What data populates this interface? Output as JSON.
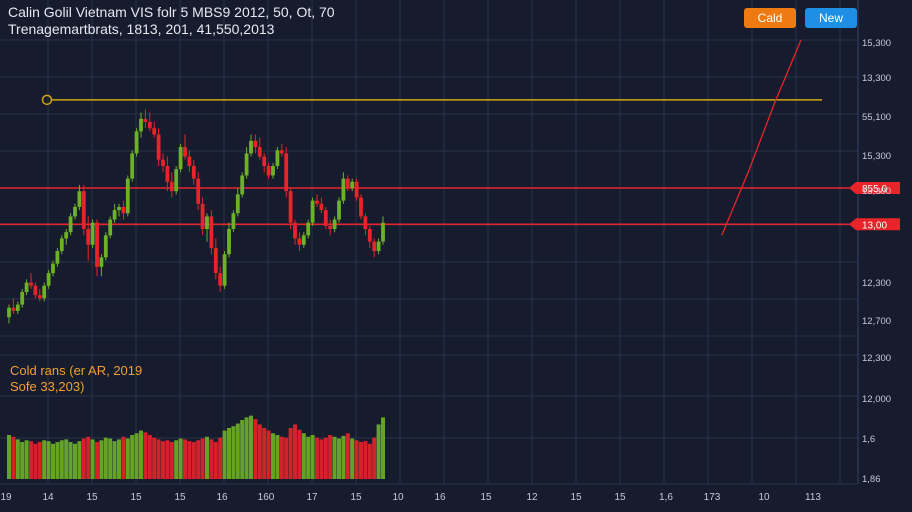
{
  "header": {
    "title": "Calin Golil Vietnam VIS folr 5 MBS9 2012, 50, Ot, 70",
    "subtitle": "Trenagemartbrats, 1813, 201, 41,550,2013"
  },
  "buttons": {
    "primary_label": "Cald",
    "secondary_label": "New"
  },
  "volume_panel": {
    "line1": "Cold rans (er AR, 2019",
    "line2": "Sofe 33,203)"
  },
  "colors": {
    "up": "#6db226",
    "down": "#e8242a",
    "level_line": "#d4a414",
    "sr_line": "#e8242a",
    "background": "#161b2e",
    "grid": "#2a3148"
  },
  "chart_data": {
    "type": "candlestick",
    "price_axis_labels": [
      "15,300",
      "13,300",
      "55,100",
      "15,300",
      "13,300",
      "855,0",
      "13,00",
      "12,300",
      "12,700",
      "12,300"
    ],
    "volume_axis_labels": [
      "12,000",
      "1,6",
      "1,86"
    ],
    "x_tick_labels": [
      "19",
      "14",
      "15",
      "15",
      "15",
      "16",
      "160",
      "17",
      "15",
      "10",
      "16",
      "15",
      "12",
      "15",
      "15",
      "1,6",
      "173",
      "10",
      "113"
    ],
    "yrange": [
      0,
      100
    ],
    "grid": true,
    "level_marker": {
      "value": 81,
      "label": "55,100"
    },
    "sr_lines": [
      {
        "value": 53,
        "label": "855,0"
      },
      {
        "value": 41.5,
        "label": "13,00"
      }
    ],
    "projection": [
      [
        162,
        38
      ],
      [
        168,
        58
      ],
      [
        174,
        80
      ],
      [
        180,
        100
      ]
    ],
    "candles": [
      {
        "o": 12,
        "h": 16,
        "l": 10,
        "c": 15
      },
      {
        "o": 15,
        "h": 18,
        "l": 13,
        "c": 14
      },
      {
        "o": 14,
        "h": 17,
        "l": 13,
        "c": 16
      },
      {
        "o": 16,
        "h": 21,
        "l": 15,
        "c": 20
      },
      {
        "o": 20,
        "h": 24,
        "l": 19,
        "c": 23
      },
      {
        "o": 23,
        "h": 26,
        "l": 21,
        "c": 22
      },
      {
        "o": 22,
        "h": 23,
        "l": 18,
        "c": 19
      },
      {
        "o": 19,
        "h": 21,
        "l": 17,
        "c": 18
      },
      {
        "o": 18,
        "h": 23,
        "l": 17,
        "c": 22
      },
      {
        "o": 22,
        "h": 27,
        "l": 21,
        "c": 26
      },
      {
        "o": 26,
        "h": 30,
        "l": 25,
        "c": 29
      },
      {
        "o": 29,
        "h": 34,
        "l": 28,
        "c": 33
      },
      {
        "o": 33,
        "h": 38,
        "l": 32,
        "c": 37
      },
      {
        "o": 37,
        "h": 40,
        "l": 35,
        "c": 39
      },
      {
        "o": 39,
        "h": 45,
        "l": 38,
        "c": 44
      },
      {
        "o": 44,
        "h": 48,
        "l": 43,
        "c": 47
      },
      {
        "o": 47,
        "h": 54,
        "l": 46,
        "c": 52
      },
      {
        "o": 52,
        "h": 54,
        "l": 38,
        "c": 40
      },
      {
        "o": 40,
        "h": 44,
        "l": 30,
        "c": 35
      },
      {
        "o": 35,
        "h": 43,
        "l": 34,
        "c": 42
      },
      {
        "o": 42,
        "h": 43,
        "l": 25,
        "c": 28
      },
      {
        "o": 28,
        "h": 32,
        "l": 25,
        "c": 31
      },
      {
        "o": 31,
        "h": 39,
        "l": 30,
        "c": 38
      },
      {
        "o": 38,
        "h": 44,
        "l": 37,
        "c": 43
      },
      {
        "o": 43,
        "h": 48,
        "l": 42,
        "c": 46
      },
      {
        "o": 46,
        "h": 48,
        "l": 44,
        "c": 47
      },
      {
        "o": 47,
        "h": 49,
        "l": 43,
        "c": 45
      },
      {
        "o": 45,
        "h": 57,
        "l": 44,
        "c": 56
      },
      {
        "o": 56,
        "h": 65,
        "l": 55,
        "c": 64
      },
      {
        "o": 64,
        "h": 72,
        "l": 63,
        "c": 71
      },
      {
        "o": 71,
        "h": 77,
        "l": 69,
        "c": 75
      },
      {
        "o": 75,
        "h": 78,
        "l": 72,
        "c": 74
      },
      {
        "o": 74,
        "h": 77,
        "l": 71,
        "c": 72
      },
      {
        "o": 72,
        "h": 74,
        "l": 69,
        "c": 70
      },
      {
        "o": 70,
        "h": 72,
        "l": 60,
        "c": 62
      },
      {
        "o": 62,
        "h": 64,
        "l": 58,
        "c": 60
      },
      {
        "o": 60,
        "h": 63,
        "l": 52,
        "c": 55
      },
      {
        "o": 55,
        "h": 58,
        "l": 50,
        "c": 52
      },
      {
        "o": 52,
        "h": 60,
        "l": 51,
        "c": 59
      },
      {
        "o": 59,
        "h": 67,
        "l": 58,
        "c": 66
      },
      {
        "o": 66,
        "h": 70,
        "l": 62,
        "c": 63
      },
      {
        "o": 63,
        "h": 65,
        "l": 58,
        "c": 60
      },
      {
        "o": 60,
        "h": 62,
        "l": 54,
        "c": 56
      },
      {
        "o": 56,
        "h": 58,
        "l": 46,
        "c": 48
      },
      {
        "o": 48,
        "h": 50,
        "l": 38,
        "c": 40
      },
      {
        "o": 40,
        "h": 45,
        "l": 36,
        "c": 44
      },
      {
        "o": 44,
        "h": 46,
        "l": 32,
        "c": 34
      },
      {
        "o": 34,
        "h": 37,
        "l": 24,
        "c": 26
      },
      {
        "o": 26,
        "h": 28,
        "l": 20,
        "c": 22
      },
      {
        "o": 22,
        "h": 33,
        "l": 21,
        "c": 32
      },
      {
        "o": 32,
        "h": 42,
        "l": 31,
        "c": 40
      },
      {
        "o": 40,
        "h": 46,
        "l": 39,
        "c": 45
      },
      {
        "o": 45,
        "h": 53,
        "l": 44,
        "c": 51
      },
      {
        "o": 51,
        "h": 58,
        "l": 50,
        "c": 57
      },
      {
        "o": 57,
        "h": 66,
        "l": 56,
        "c": 64
      },
      {
        "o": 64,
        "h": 70,
        "l": 63,
        "c": 68
      },
      {
        "o": 68,
        "h": 70,
        "l": 64,
        "c": 66
      },
      {
        "o": 66,
        "h": 69,
        "l": 62,
        "c": 63
      },
      {
        "o": 63,
        "h": 64,
        "l": 58,
        "c": 60
      },
      {
        "o": 60,
        "h": 61,
        "l": 56,
        "c": 57
      },
      {
        "o": 57,
        "h": 61,
        "l": 56,
        "c": 60
      },
      {
        "o": 60,
        "h": 66,
        "l": 59,
        "c": 65
      },
      {
        "o": 65,
        "h": 67,
        "l": 63,
        "c": 64
      },
      {
        "o": 64,
        "h": 66,
        "l": 50,
        "c": 52
      },
      {
        "o": 52,
        "h": 53,
        "l": 40,
        "c": 42
      },
      {
        "o": 42,
        "h": 43,
        "l": 35,
        "c": 37
      },
      {
        "o": 37,
        "h": 39,
        "l": 33,
        "c": 35
      },
      {
        "o": 35,
        "h": 39,
        "l": 34,
        "c": 38
      },
      {
        "o": 38,
        "h": 43,
        "l": 37,
        "c": 42
      },
      {
        "o": 42,
        "h": 50,
        "l": 41,
        "c": 49
      },
      {
        "o": 49,
        "h": 51,
        "l": 47,
        "c": 48
      },
      {
        "o": 48,
        "h": 50,
        "l": 45,
        "c": 46
      },
      {
        "o": 46,
        "h": 47,
        "l": 40,
        "c": 41
      },
      {
        "o": 41,
        "h": 43,
        "l": 38,
        "c": 40
      },
      {
        "o": 40,
        "h": 44,
        "l": 39,
        "c": 43
      },
      {
        "o": 43,
        "h": 50,
        "l": 42,
        "c": 49
      },
      {
        "o": 49,
        "h": 58,
        "l": 48,
        "c": 56
      },
      {
        "o": 56,
        "h": 57,
        "l": 52,
        "c": 53
      },
      {
        "o": 53,
        "h": 56,
        "l": 52,
        "c": 55
      },
      {
        "o": 55,
        "h": 56,
        "l": 49,
        "c": 50
      },
      {
        "o": 50,
        "h": 51,
        "l": 43,
        "c": 44
      },
      {
        "o": 44,
        "h": 45,
        "l": 38,
        "c": 40
      },
      {
        "o": 40,
        "h": 41,
        "l": 34,
        "c": 36
      },
      {
        "o": 36,
        "h": 37,
        "l": 31,
        "c": 33
      },
      {
        "o": 33,
        "h": 37,
        "l": 32,
        "c": 36
      },
      {
        "o": 36,
        "h": 44,
        "l": 35,
        "c": 42
      }
    ],
    "volume": [
      50,
      48,
      45,
      42,
      44,
      43,
      40,
      42,
      44,
      43,
      40,
      42,
      44,
      45,
      42,
      40,
      43,
      46,
      48,
      45,
      42,
      44,
      47,
      46,
      43,
      45,
      48,
      46,
      50,
      52,
      55,
      53,
      50,
      47,
      45,
      43,
      44,
      42,
      44,
      46,
      45,
      43,
      42,
      44,
      46,
      48,
      45,
      42,
      47,
      55,
      58,
      60,
      63,
      67,
      70,
      72,
      68,
      62,
      58,
      55,
      52,
      50,
      48,
      47,
      58,
      62,
      56,
      52,
      48,
      50,
      47,
      45,
      47,
      50,
      48,
      46,
      49,
      52,
      46,
      44,
      42,
      43,
      40,
      47,
      62,
      70
    ]
  }
}
